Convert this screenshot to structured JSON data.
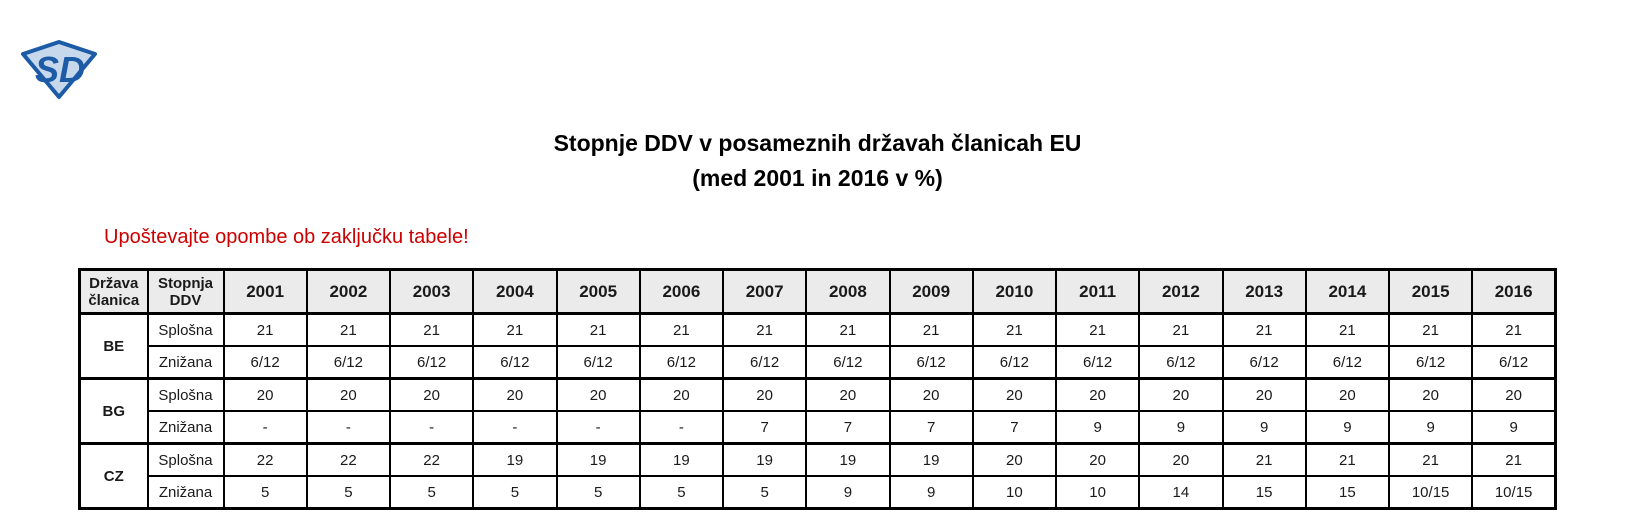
{
  "logo": {
    "monogram": "SD"
  },
  "header": {
    "title_line1": "Stopnje DDV v posameznih državah članicah EU",
    "title_line2": "(med 2001 in 2016 v %)",
    "note": "Upoštevajte opombe ob zaključku tabele!"
  },
  "colors": {
    "accent_blue": "#1e6fb5",
    "note_red": "#cc0000",
    "header_bg": "#ebebeb",
    "logo_dark_blue": "#1c5ba6",
    "logo_light_blue": "#c8d8ec"
  },
  "table": {
    "corner_headers": [
      "Država članica",
      "Stopnja DDV"
    ],
    "years": [
      "2001",
      "2002",
      "2003",
      "2004",
      "2005",
      "2006",
      "2007",
      "2008",
      "2009",
      "2010",
      "2011",
      "2012",
      "2013",
      "2014",
      "2015",
      "2016"
    ],
    "blue_years": [
      "2015",
      "2016"
    ],
    "rate_labels": {
      "standard": "Splošna",
      "reduced": "Znižana"
    },
    "countries": [
      {
        "code": "BE",
        "standard": [
          "21",
          "21",
          "21",
          "21",
          "21",
          "21",
          "21",
          "21",
          "21",
          "21",
          "21",
          "21",
          "21",
          "21",
          "21",
          "21"
        ],
        "reduced": [
          "6/12",
          "6/12",
          "6/12",
          "6/12",
          "6/12",
          "6/12",
          "6/12",
          "6/12",
          "6/12",
          "6/12",
          "6/12",
          "6/12",
          "6/12",
          "6/12",
          "6/12",
          "6/12"
        ]
      },
      {
        "code": "BG",
        "standard": [
          "20",
          "20",
          "20",
          "20",
          "20",
          "20",
          "20",
          "20",
          "20",
          "20",
          "20",
          "20",
          "20",
          "20",
          "20",
          "20"
        ],
        "reduced": [
          "-",
          "-",
          "-",
          "-",
          "-",
          "-",
          "7",
          "7",
          "7",
          "7",
          "9",
          "9",
          "9",
          "9",
          "9",
          "9"
        ]
      },
      {
        "code": "CZ",
        "standard": [
          "22",
          "22",
          "22",
          "19",
          "19",
          "19",
          "19",
          "19",
          "19",
          "20",
          "20",
          "20",
          "21",
          "21",
          "21",
          "21"
        ],
        "reduced": [
          "5",
          "5",
          "5",
          "5",
          "5",
          "5",
          "5",
          "9",
          "9",
          "10",
          "10",
          "14",
          "15",
          "15",
          "10/15",
          "10/15"
        ]
      }
    ]
  }
}
